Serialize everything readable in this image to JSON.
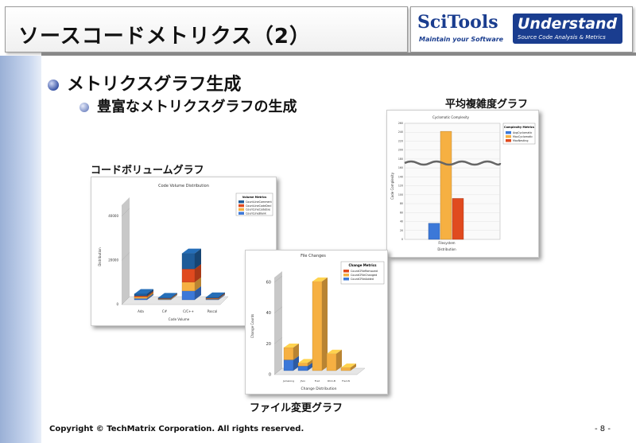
{
  "header": {
    "title": "ソースコードメトリクス（2）",
    "brand1": "SciTools",
    "brand1_tagline": "Maintain your Software",
    "brand2": "Understand",
    "brand2_tagline": "Source Code Analysis & Metrics"
  },
  "bullets": {
    "level1": "メトリクスグラフ生成",
    "level2": "豊富なメトリクスグラフの生成"
  },
  "captions": {
    "volume": "コードボリュームグラフ",
    "cyclomatic": "平均複雑度グラフ",
    "changes": "ファイル変更グラフ"
  },
  "footer": {
    "copyright": "Copyright © TechMatrix Corporation. All rights reserved.",
    "page": "- 8 -"
  },
  "colors": {
    "blue": "#3c78d8",
    "orange": "#f6b042",
    "red": "#e04a1f",
    "navy": "#1f5c99"
  },
  "chart_data": [
    {
      "type": "bar",
      "title": "Code Volume Distribution",
      "xlabel": "Code Volume",
      "ylabel": "Distribution",
      "categories": [
        "Ada",
        "C#",
        "C/C++",
        "Pascal"
      ],
      "yticks": [
        "0",
        "20000",
        "40000"
      ],
      "ylim": [
        0,
        45000
      ],
      "series": [
        {
          "name": "CountLineComment",
          "values": [
            900,
            300,
            7000,
            400
          ]
        },
        {
          "name": "CountLineCodeDecl",
          "values": [
            500,
            150,
            6000,
            200
          ]
        },
        {
          "name": "CountLineCodeExe",
          "values": [
            700,
            300,
            4000,
            250
          ]
        },
        {
          "name": "CountLineBlank",
          "values": [
            600,
            200,
            4000,
            300
          ]
        }
      ]
    },
    {
      "type": "bar",
      "title": "Cyclomatic Complexity",
      "xlabel": "Distribution",
      "ylabel": "Code Complexity",
      "categories": [
        "Filesystem"
      ],
      "yticks": [
        "0",
        "20",
        "40",
        "60",
        "80",
        "100",
        "120",
        "140",
        "160",
        "180",
        "200",
        "220",
        "240",
        "260"
      ],
      "series": [
        {
          "name": "AvgCyclomatic",
          "values": [
            5.5
          ]
        },
        {
          "name": "MaxCyclomatic",
          "values": [
            245
          ]
        },
        {
          "name": "MaxNesting",
          "values": [
            14
          ]
        }
      ]
    },
    {
      "type": "bar",
      "title": "File Changes",
      "xlabel": "Change Distribution",
      "ylabel": "Change Counts",
      "categories": [
        "Jamelong",
        "Jhon",
        "Fred",
        "Rhm-B",
        "Fred-N"
      ],
      "yticks": [
        "0",
        "20",
        "40",
        "60"
      ],
      "ylim": [
        0,
        60
      ],
      "series": [
        {
          "name": "CountCFileRemoved",
          "values": [
            0,
            0,
            0,
            0,
            0
          ]
        },
        {
          "name": "CountCFileChanged",
          "values": [
            8,
            2,
            58,
            11,
            2
          ]
        },
        {
          "name": "CountCFileAdded",
          "values": [
            7,
            3,
            0,
            0,
            0
          ]
        }
      ]
    }
  ]
}
